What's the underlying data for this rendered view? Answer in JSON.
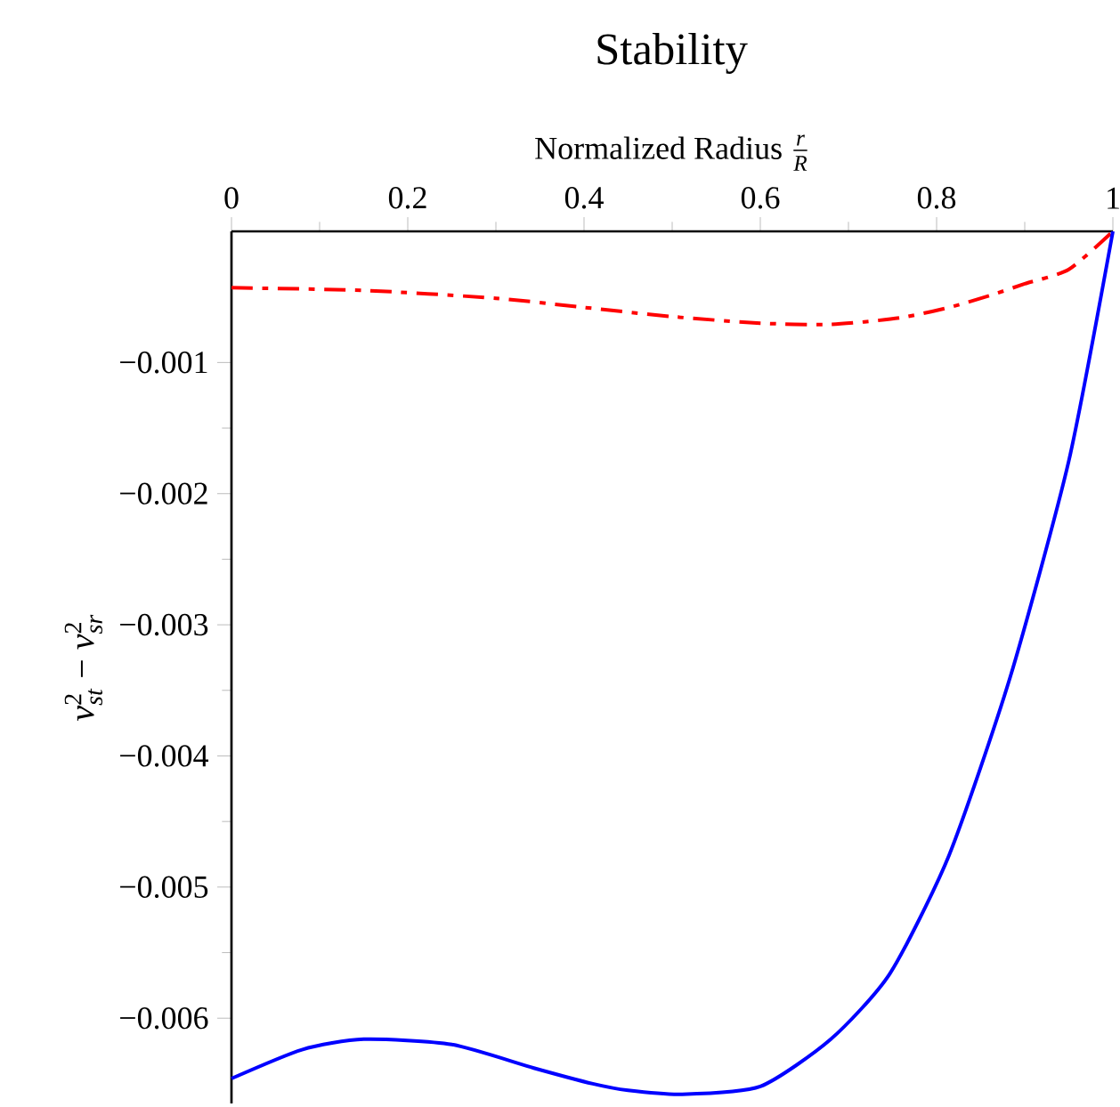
{
  "chart_data": {
    "type": "line",
    "title": "Stability",
    "xlabel": "\\text{Normalized Radius }\\frac{\\textit{r}}{\\textit{R}}",
    "ylabel": "\\textit{v}^{\\text{2}}_{\\textit{st}}\\text{ − }\\textit{v}^{\\text{2}}_{\\textit{sr}}",
    "x": [
      0,
      0.08,
      0.15,
      0.25,
      0.343,
      0.41,
      0.45,
      0.511,
      0.6,
      0.68,
      0.747,
      0.814,
      0.883,
      0.95,
      1
    ],
    "series": [
      {
        "color": "#ff0000",
        "line_style": "dashdot",
        "x": [
          0,
          0.15,
          0.3,
          0.4,
          0.5,
          0.6,
          0.68,
          0.758,
          0.814,
          0.86,
          0.9,
          0.95,
          1
        ],
        "values": [
          -0.00043,
          -0.00045,
          -0.00051,
          -0.00058,
          -0.00065,
          -0.0007,
          -0.00071,
          -0.00066,
          -0.00058,
          -0.00049,
          -0.0004,
          -0.00029,
          0
        ]
      },
      {
        "color": "#0000ff",
        "line_style": "solid",
        "values": [
          -0.00646,
          -0.00624,
          -0.00616,
          -0.0062,
          -0.00638,
          -0.0065,
          -0.00655,
          -0.00658,
          -0.00652,
          -0.00616,
          -0.00566,
          -0.00476,
          -0.00341,
          -0.00175,
          0
        ]
      }
    ],
    "xlim": [
      0,
      1
    ],
    "ylim": [
      -0.00665,
      0
    ],
    "xticks": [
      0,
      0.2,
      0.4,
      0.6,
      0.8,
      1
    ],
    "yticks": [
      {
        "value": -0.001,
        "label": "−0.001"
      },
      {
        "value": -0.002,
        "label": "−0.002"
      },
      {
        "value": -0.003,
        "label": "−0.003"
      },
      {
        "value": -0.004,
        "label": "−0.004"
      },
      {
        "value": -0.005,
        "label": "−0.005"
      },
      {
        "value": -0.006,
        "label": "−0.006"
      }
    ],
    "grid": false,
    "marker": "none"
  }
}
